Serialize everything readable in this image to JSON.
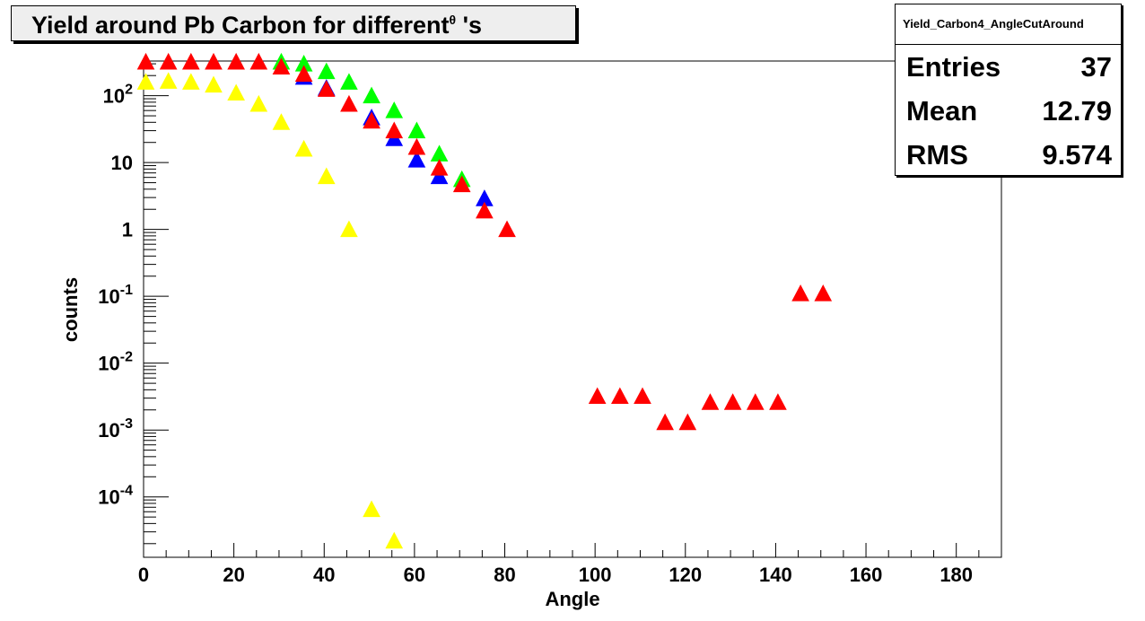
{
  "chart_data": {
    "type": "scatter",
    "title": "Yield around Pb Carbon for different",
    "title_symbol": "θ",
    "title_suffix": " 's",
    "xlabel": "Angle",
    "ylabel": "counts",
    "xlim": [
      0,
      190
    ],
    "ylim": [
      1.25e-05,
      330
    ],
    "yscale": "log",
    "grid": false,
    "marker": "triangle",
    "x_ticks": [
      "0",
      "20",
      "40",
      "60",
      "80",
      "100",
      "120",
      "140",
      "160",
      "180"
    ],
    "y_ticks": [
      {
        "base": "10",
        "exp": "-4",
        "value": 0.0001
      },
      {
        "base": "10",
        "exp": "-3",
        "value": 0.001
      },
      {
        "base": "10",
        "exp": "-2",
        "value": 0.01
      },
      {
        "base": "10",
        "exp": "-1",
        "value": 0.1
      },
      {
        "base": "1",
        "exp": "",
        "value": 1
      },
      {
        "base": "10",
        "exp": "",
        "value": 10
      },
      {
        "base": "10",
        "exp": "2",
        "value": 100
      }
    ],
    "series": [
      {
        "color": "#ffff00",
        "points": [
          [
            0.5,
            160
          ],
          [
            5.5,
            165
          ],
          [
            10.5,
            160
          ],
          [
            15.5,
            145
          ],
          [
            20.5,
            110
          ],
          [
            25.5,
            75
          ],
          [
            30.5,
            40
          ],
          [
            35.5,
            16
          ],
          [
            40.5,
            6.2
          ],
          [
            45.5,
            1
          ],
          [
            50.5,
            6.5e-05
          ],
          [
            55.5,
            2.2e-05
          ]
        ]
      },
      {
        "color": "#00ff00",
        "points": [
          [
            30.5,
            320
          ],
          [
            35.5,
            300
          ],
          [
            40.5,
            230
          ],
          [
            45.5,
            160
          ],
          [
            50.5,
            100
          ],
          [
            55.5,
            60
          ],
          [
            60.5,
            30
          ],
          [
            65.5,
            13.5
          ],
          [
            70.5,
            5.6
          ]
        ]
      },
      {
        "color": "#0000ff",
        "points": [
          [
            35.5,
            190
          ],
          [
            40.5,
            130
          ],
          [
            50.5,
            47
          ],
          [
            55.5,
            23
          ],
          [
            60.5,
            11
          ],
          [
            65.5,
            6.2
          ],
          [
            75.5,
            2.9
          ]
        ]
      },
      {
        "color": "#ff0000",
        "points": [
          [
            0.5,
            320
          ],
          [
            5.5,
            320
          ],
          [
            10.5,
            320
          ],
          [
            15.5,
            320
          ],
          [
            20.5,
            320
          ],
          [
            25.5,
            320
          ],
          [
            30.5,
            270
          ],
          [
            35.5,
            210
          ],
          [
            40.5,
            125
          ],
          [
            45.5,
            75
          ],
          [
            50.5,
            42
          ],
          [
            55.5,
            30
          ],
          [
            60.5,
            17
          ],
          [
            65.5,
            8.3
          ],
          [
            70.5,
            4.7
          ],
          [
            75.5,
            1.9
          ],
          [
            80.5,
            1
          ],
          [
            100.5,
            0.0032
          ],
          [
            105.5,
            0.0032
          ],
          [
            110.5,
            0.0032
          ],
          [
            115.5,
            0.0013
          ],
          [
            120.5,
            0.0013
          ],
          [
            125.5,
            0.0026
          ],
          [
            130.5,
            0.0026
          ],
          [
            135.5,
            0.0026
          ],
          [
            140.5,
            0.0026
          ],
          [
            145.5,
            0.11
          ],
          [
            150.5,
            0.11
          ]
        ]
      }
    ]
  },
  "stats": {
    "name": "Yield_Carbon4_AngleCutAround",
    "rows": [
      {
        "label": "Entries",
        "value": "37"
      },
      {
        "label": "Mean",
        "value": "12.79"
      },
      {
        "label": "RMS",
        "value": "9.574"
      }
    ]
  }
}
